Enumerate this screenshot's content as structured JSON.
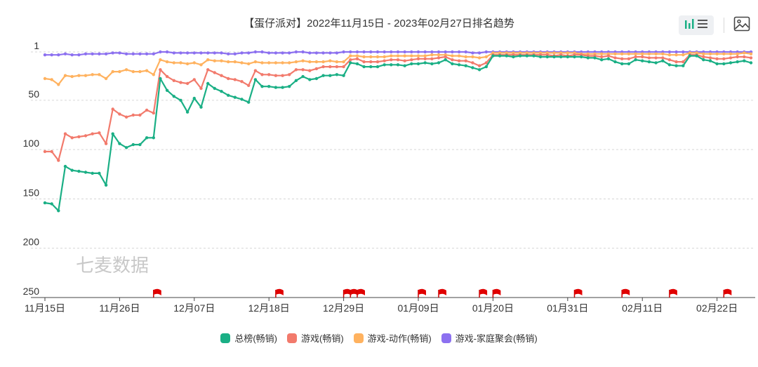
{
  "title": "【蛋仔派对】2022年11月15日 - 2023年02月27日排名趋势",
  "toolbar": {
    "chart_toggle_icon": "bar-list-toggle-icon",
    "save_image_icon": "image-icon"
  },
  "watermark": "七麦数据",
  "chart_data": {
    "type": "line",
    "title": "【蛋仔派对】2022年11月15日 - 2023年02月27日排名趋势",
    "xlabel": "",
    "ylabel": "",
    "y_inverted": true,
    "ylim": [
      1,
      250
    ],
    "yticks": [
      1,
      50,
      100,
      150,
      200,
      250
    ],
    "x_start": "11月15日",
    "xticks": [
      {
        "day": 0,
        "label": "11月15日"
      },
      {
        "day": 11,
        "label": "11月26日"
      },
      {
        "day": 22,
        "label": "12月07日"
      },
      {
        "day": 33,
        "label": "12月18日"
      },
      {
        "day": 44,
        "label": "12月29日"
      },
      {
        "day": 55,
        "label": "01月09日"
      },
      {
        "day": 66,
        "label": "01月20日"
      },
      {
        "day": 77,
        "label": "01月31日"
      },
      {
        "day": 88,
        "label": "02月11日"
      },
      {
        "day": 99,
        "label": "02月22日"
      }
    ],
    "grid": "horizontal-dashed",
    "legend_position": "bottom",
    "event_flags": [
      16,
      34,
      44,
      45,
      46,
      55,
      58,
      64,
      66,
      78,
      85,
      92,
      100
    ],
    "series": [
      {
        "name": "总榜(畅销)",
        "color": "#1aaf85",
        "values": [
          154,
          155,
          162,
          117,
          121,
          122,
          123,
          124,
          124,
          136,
          84,
          94,
          98,
          95,
          95,
          88,
          88,
          28,
          40,
          46,
          50,
          62,
          48,
          57,
          33,
          38,
          41,
          45,
          47,
          49,
          52,
          29,
          36,
          36,
          37,
          37,
          36,
          30,
          26,
          29,
          28,
          25,
          25,
          24,
          25,
          12,
          13,
          16,
          16,
          16,
          14,
          14,
          14,
          15,
          13,
          13,
          12,
          13,
          12,
          9,
          13,
          14,
          15,
          17,
          19,
          16,
          5,
          5,
          5,
          6,
          5,
          5,
          5,
          6,
          6,
          6,
          6,
          6,
          6,
          6,
          7,
          7,
          9,
          8,
          11,
          13,
          13,
          9,
          10,
          11,
          12,
          10,
          14,
          15,
          15,
          5,
          5,
          9,
          10,
          13,
          13,
          12,
          11,
          10,
          12
        ]
      },
      {
        "name": "游戏(畅销)",
        "color": "#f27a6c",
        "values": [
          102,
          102,
          111,
          84,
          88,
          87,
          86,
          84,
          83,
          94,
          59,
          64,
          67,
          65,
          65,
          60,
          63,
          19,
          26,
          30,
          32,
          33,
          29,
          38,
          19,
          22,
          25,
          28,
          29,
          31,
          35,
          20,
          24,
          24,
          25,
          25,
          24,
          19,
          19,
          20,
          18,
          16,
          16,
          16,
          16,
          9,
          8,
          11,
          11,
          11,
          10,
          9,
          9,
          10,
          9,
          8,
          8,
          8,
          7,
          6,
          9,
          10,
          10,
          12,
          15,
          12,
          4,
          4,
          4,
          4,
          4,
          4,
          4,
          4,
          4,
          5,
          4,
          5,
          4,
          4,
          5,
          5,
          6,
          5,
          7,
          8,
          8,
          6,
          6,
          7,
          7,
          7,
          9,
          11,
          11,
          4,
          4,
          6,
          7,
          8,
          8,
          7,
          6,
          6,
          7
        ]
      },
      {
        "name": "游戏-动作(畅销)",
        "color": "#ffb25f",
        "values": [
          28,
          29,
          34,
          25,
          26,
          25,
          25,
          24,
          24,
          28,
          21,
          21,
          19,
          21,
          21,
          20,
          24,
          9,
          11,
          12,
          12,
          13,
          12,
          14,
          9,
          10,
          10,
          11,
          11,
          12,
          13,
          11,
          12,
          12,
          12,
          12,
          12,
          11,
          10,
          11,
          11,
          11,
          10,
          11,
          11,
          5,
          5,
          6,
          6,
          6,
          6,
          5,
          5,
          5,
          5,
          5,
          5,
          4,
          4,
          4,
          5,
          5,
          6,
          6,
          7,
          6,
          2,
          2,
          2,
          2,
          2,
          2,
          2,
          2,
          2,
          2,
          2,
          2,
          2,
          3,
          3,
          3,
          3,
          3,
          3,
          3,
          3,
          3,
          3,
          3,
          3,
          3,
          4,
          4,
          4,
          2,
          2,
          3,
          3,
          3,
          3,
          3,
          3,
          2,
          3
        ]
      },
      {
        "name": "游戏-家庭聚会(畅销)",
        "color": "#8c70f0",
        "values": [
          4,
          4,
          4,
          3,
          4,
          4,
          3,
          3,
          3,
          3,
          2,
          2,
          3,
          3,
          3,
          3,
          3,
          1,
          1,
          2,
          2,
          2,
          2,
          2,
          2,
          2,
          2,
          3,
          3,
          2,
          2,
          1,
          1,
          2,
          2,
          2,
          2,
          1,
          1,
          2,
          2,
          2,
          2,
          2,
          1,
          1,
          1,
          1,
          1,
          1,
          1,
          1,
          1,
          1,
          1,
          1,
          1,
          1,
          1,
          1,
          1,
          1,
          1,
          2,
          2,
          1,
          1,
          1,
          1,
          1,
          1,
          1,
          1,
          1,
          1,
          1,
          1,
          1,
          1,
          1,
          1,
          1,
          1,
          1,
          1,
          1,
          1,
          1,
          1,
          1,
          1,
          1,
          1,
          1,
          1,
          1,
          1,
          1,
          1,
          1,
          1,
          1,
          1,
          1,
          1
        ]
      }
    ]
  }
}
